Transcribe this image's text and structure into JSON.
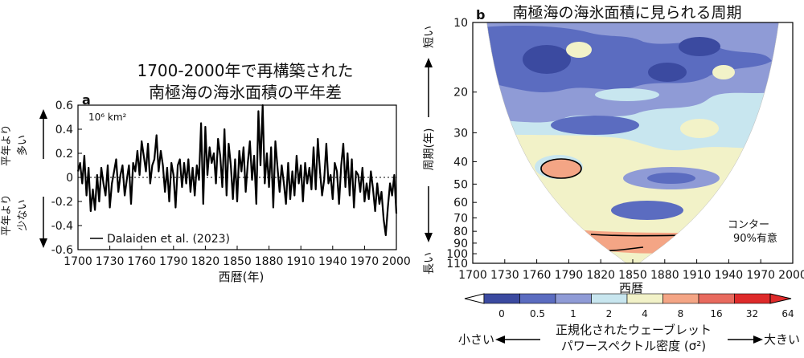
{
  "panel_a": {
    "letter": "a",
    "title_line1": "1700-2000年で再構築された",
    "title_line2": "南極海の海氷面積の平年差",
    "unit": "10⁶ km²",
    "xlabel": "西暦(年)",
    "side_label_top": [
      "平年より",
      "多い"
    ],
    "side_label_bottom": [
      "平年より",
      "少ない"
    ],
    "legend": "Dalaiden et al. (2023)"
  },
  "panel_b": {
    "letter": "b",
    "title": "南極海の海氷面積に見られる周期",
    "xlabel": "西暦",
    "ylabel": "周期(年)",
    "axis_short": "短い",
    "axis_long": "長い",
    "contour_note_line1": "コンター",
    "contour_note_line2": "90%有意"
  },
  "colorbar": {
    "ticks": [
      "0",
      "0.5",
      "1",
      "2",
      "4",
      "8",
      "16",
      "32",
      "64"
    ],
    "colors": [
      "#ffffff",
      "#3b4aa0",
      "#5b6cc0",
      "#8f9bd6",
      "#c8e6ef",
      "#f2f2c8",
      "#f4a585",
      "#e86a5e",
      "#de2a2a"
    ],
    "label_line1": "正規化されたウェーブレット",
    "label_line2": "パワースペクトル密度 (σ²)",
    "left_label": "小さい",
    "right_label": "大きい"
  },
  "chart_data": [
    {
      "type": "line",
      "title": "1700-2000年で再構築された 南極海の海氷面積の平年差",
      "xlabel": "西暦(年)",
      "ylabel": "10⁶ km²",
      "xlim": [
        1700,
        2000
      ],
      "ylim": [
        -0.6,
        0.6
      ],
      "xticks": [
        1700,
        1730,
        1760,
        1790,
        1820,
        1850,
        1880,
        1910,
        1940,
        1970,
        2000
      ],
      "yticks": [
        -0.6,
        -0.4,
        -0.2,
        0,
        0.2,
        0.4,
        0.6
      ],
      "series": [
        {
          "name": "Dalaiden et al. (2023)",
          "x": [
            1700,
            1702,
            1704,
            1706,
            1708,
            1710,
            1712,
            1714,
            1716,
            1718,
            1720,
            1722,
            1724,
            1726,
            1728,
            1730,
            1732,
            1734,
            1736,
            1738,
            1740,
            1742,
            1744,
            1746,
            1748,
            1750,
            1752,
            1754,
            1756,
            1758,
            1760,
            1762,
            1764,
            1766,
            1768,
            1770,
            1772,
            1774,
            1776,
            1778,
            1780,
            1782,
            1784,
            1786,
            1788,
            1790,
            1792,
            1794,
            1796,
            1798,
            1800,
            1802,
            1804,
            1806,
            1808,
            1810,
            1812,
            1814,
            1816,
            1818,
            1820,
            1822,
            1824,
            1826,
            1828,
            1830,
            1832,
            1834,
            1836,
            1838,
            1840,
            1842,
            1844,
            1846,
            1848,
            1850,
            1852,
            1854,
            1856,
            1858,
            1860,
            1862,
            1864,
            1866,
            1868,
            1870,
            1872,
            1874,
            1876,
            1878,
            1880,
            1882,
            1884,
            1886,
            1888,
            1890,
            1892,
            1894,
            1896,
            1898,
            1900,
            1902,
            1904,
            1906,
            1908,
            1910,
            1912,
            1914,
            1916,
            1918,
            1920,
            1922,
            1924,
            1926,
            1928,
            1930,
            1932,
            1934,
            1936,
            1938,
            1940,
            1942,
            1944,
            1946,
            1948,
            1950,
            1952,
            1954,
            1956,
            1958,
            1960,
            1962,
            1964,
            1966,
            1968,
            1970,
            1972,
            1974,
            1976,
            1978,
            1980,
            1982,
            1984,
            1986,
            1988,
            1990,
            1992,
            1994,
            1996,
            1998,
            2000
          ],
          "values": [
            0.05,
            0.12,
            -0.05,
            0.18,
            -0.15,
            0.08,
            -0.28,
            -0.1,
            -0.27,
            0.02,
            -0.2,
            0.08,
            -0.05,
            -0.15,
            0.1,
            -0.25,
            -0.05,
            0.05,
            0.15,
            -0.12,
            0.02,
            0.1,
            -0.15,
            -0.02,
            0.1,
            -0.22,
            0.12,
            0.05,
            0.22,
            0.02,
            0.3,
            0.18,
            0.05,
            0.28,
            -0.05,
            0.1,
            0.15,
            0.35,
            0.05,
            0.22,
            0.1,
            -0.12,
            0.08,
            -0.2,
            0.12,
            0.02,
            -0.25,
            0.1,
            0.15,
            -0.08,
            0.12,
            -0.05,
            0.15,
            -0.12,
            0.08,
            -0.15,
            0.1,
            -0.02,
            0.45,
            -0.22,
            0.42,
            0.02,
            0.25,
            0.12,
            0.2,
            -0.05,
            0.32,
            0.18,
            -0.08,
            0.4,
            -0.15,
            0.28,
            0.1,
            -0.18,
            0.15,
            -0.2,
            0.22,
            0.05,
            0.25,
            -0.12,
            0.12,
            0.3,
            -0.02,
            0.18,
            -0.22,
            0.55,
            0.1,
            0.6,
            -0.05,
            0.2,
            -0.08,
            0.25,
            -0.25,
            0.3,
            0.08,
            -0.12,
            0.1,
            -0.05,
            -0.22,
            0.12,
            -0.18,
            0.05,
            -0.15,
            0.18,
            -0.05,
            0.1,
            -0.2,
            0.12,
            -0.05,
            0.08,
            -0.1,
            0.25,
            -0.1,
            0.32,
            0.05,
            -0.15,
            -0.02,
            0.28,
            -0.05,
            0.02,
            -0.18,
            0.12,
            0.05,
            -0.22,
            0.1,
            0.28,
            -0.08,
            0.2,
            -0.15,
            0.15,
            -0.25,
            0.05,
            0.02,
            -0.12,
            0.08,
            -0.2,
            -0.05,
            -0.18,
            0.05,
            -0.1,
            -0.28,
            -0.05,
            -0.22,
            -0.12,
            -0.35,
            -0.48,
            -0.25,
            -0.05,
            -0.15,
            0.02,
            -0.3
          ]
        }
      ]
    },
    {
      "type": "heatmap",
      "title": "南極海の海氷面積に見られる周期",
      "xlabel": "西暦",
      "ylabel": "周期(年)",
      "xlim": [
        1700,
        2000
      ],
      "ylim": [
        10,
        110
      ],
      "y_scale": "log",
      "xticks": [
        1700,
        1730,
        1760,
        1790,
        1820,
        1850,
        1880,
        1910,
        1940,
        1970,
        2000
      ],
      "yticks": [
        10,
        20,
        30,
        40,
        50,
        60,
        70,
        80,
        90,
        100,
        110
      ],
      "color_levels": [
        0,
        0.5,
        1,
        2,
        4,
        8,
        16,
        32,
        64
      ],
      "regions": [
        {
          "level_range": [
            2,
            4
          ],
          "x_center": 1775,
          "period_center": 45,
          "note": "contour"
        },
        {
          "level_range": [
            8,
            16
          ],
          "x_center": 1780,
          "period_center": 43,
          "note": "contour, significant"
        },
        {
          "level_range": [
            8,
            16
          ],
          "x_center": 1850,
          "period_center": 95,
          "note": "contour, significant"
        }
      ]
    }
  ]
}
